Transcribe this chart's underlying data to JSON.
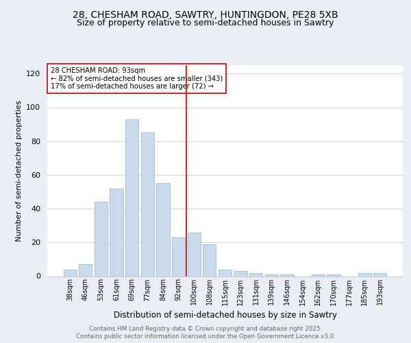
{
  "title1": "28, CHESHAM ROAD, SAWTRY, HUNTINGDON, PE28 5XB",
  "title2": "Size of property relative to semi-detached houses in Sawtry",
  "xlabel": "Distribution of semi-detached houses by size in Sawtry",
  "ylabel": "Number of semi-detached properties",
  "categories": [
    "38sqm",
    "46sqm",
    "53sqm",
    "61sqm",
    "69sqm",
    "77sqm",
    "84sqm",
    "92sqm",
    "100sqm",
    "108sqm",
    "115sqm",
    "123sqm",
    "131sqm",
    "139sqm",
    "146sqm",
    "154sqm",
    "162sqm",
    "170sqm",
    "177sqm",
    "185sqm",
    "193sqm"
  ],
  "values": [
    4,
    7,
    44,
    52,
    93,
    85,
    55,
    23,
    26,
    19,
    4,
    3,
    2,
    1,
    1,
    0,
    1,
    1,
    0,
    2,
    2
  ],
  "bar_color": "#c9daea",
  "bar_edge_color": "#a0bdd0",
  "vline_x_index": 7.5,
  "vline_color": "#cc0000",
  "annotation_title": "28 CHESHAM ROAD: 93sqm",
  "annotation_line1": "← 82% of semi-detached houses are smaller (343)",
  "annotation_line2": "17% of semi-detached houses are larger (72) →",
  "annotation_box_color": "#ffffff",
  "annotation_box_edge_color": "#cc0000",
  "ylim": [
    0,
    125
  ],
  "yticks": [
    0,
    20,
    40,
    60,
    80,
    100,
    120
  ],
  "footer1": "Contains HM Land Registry data © Crown copyright and database right 2025.",
  "footer2": "Contains public sector information licensed under the Open Government Licence v3.0.",
  "background_color": "#e8eef4",
  "plot_background": "#ffffff",
  "title_fontsize": 10,
  "subtitle_fontsize": 9
}
